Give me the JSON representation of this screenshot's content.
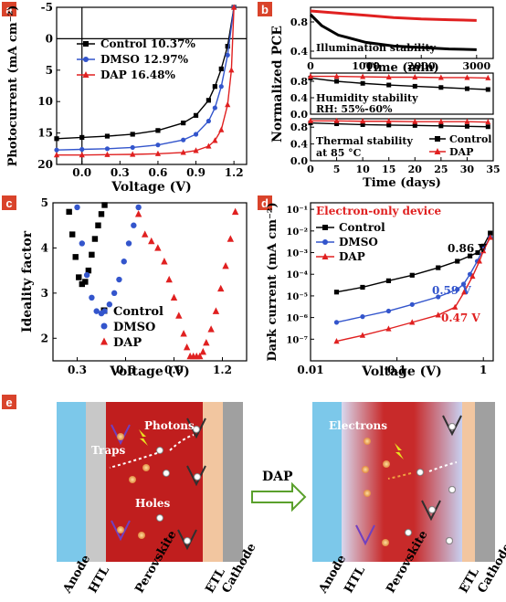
{
  "panels": {
    "a": "a",
    "b": "b",
    "c": "c",
    "d": "d",
    "e": "e"
  },
  "colors": {
    "control": "#000000",
    "dmso": "#3355cc",
    "dap": "#e02020",
    "panel_label_bg": "#d9432b"
  },
  "chart_data": [
    {
      "id": "a",
      "type": "line",
      "xlabel": "Voltage (V)",
      "ylabel": "Photocurrent (mA cm⁻²)",
      "xlim": [
        -0.2,
        1.3
      ],
      "ylim": [
        -5,
        20
      ],
      "y_inverted": true,
      "xticks": [
        "0.0",
        "0.3",
        "0.6",
        "0.9",
        "1.2"
      ],
      "yticks": [
        "-5",
        "0",
        "5",
        "10",
        "15",
        "20"
      ],
      "legend": "top-left",
      "series": [
        {
          "name": "Control 10.37%",
          "color": "#000000",
          "marker": "square",
          "x": [
            -0.2,
            0.0,
            0.2,
            0.4,
            0.6,
            0.8,
            0.9,
            1.0,
            1.05,
            1.1,
            1.15,
            1.2
          ],
          "y": [
            15.9,
            15.7,
            15.5,
            15.2,
            14.6,
            13.4,
            12.2,
            9.8,
            7.6,
            4.8,
            1.2,
            -5
          ]
        },
        {
          "name": "DMSO  12.97%",
          "color": "#3355cc",
          "marker": "circle",
          "x": [
            -0.2,
            0.0,
            0.2,
            0.4,
            0.6,
            0.8,
            0.9,
            1.0,
            1.05,
            1.1,
            1.15,
            1.2
          ],
          "y": [
            17.7,
            17.6,
            17.5,
            17.3,
            16.9,
            16.1,
            15.2,
            13.1,
            11.0,
            7.6,
            2.6,
            -5
          ]
        },
        {
          "name": "DAP 16.48%",
          "color": "#e02020",
          "marker": "triangle",
          "x": [
            -0.2,
            0.0,
            0.2,
            0.4,
            0.6,
            0.8,
            0.9,
            1.0,
            1.05,
            1.1,
            1.15,
            1.18,
            1.2
          ],
          "y": [
            18.5,
            18.5,
            18.45,
            18.4,
            18.3,
            18.1,
            17.8,
            17.1,
            16.2,
            14.5,
            10.5,
            5.0,
            -5
          ]
        }
      ]
    },
    {
      "id": "b1",
      "type": "line",
      "xlabel": "Time (min)",
      "xlim": [
        0,
        3300
      ],
      "ylim": [
        0.3,
        1.0
      ],
      "xticks": [
        "0",
        "1000",
        "2000",
        "3000"
      ],
      "yticks": [
        "0.4",
        "0.8"
      ],
      "annotation": "Illumination stability",
      "series": [
        {
          "name": "Control",
          "color": "#000000",
          "x": [
            0,
            200,
            500,
            1000,
            1500,
            2000,
            2500,
            3000
          ],
          "y": [
            0.9,
            0.75,
            0.62,
            0.52,
            0.47,
            0.45,
            0.43,
            0.42
          ]
        },
        {
          "name": "DAP",
          "color": "#e02020",
          "x": [
            0,
            500,
            1000,
            1500,
            2000,
            2500,
            3000
          ],
          "y": [
            0.95,
            0.92,
            0.89,
            0.86,
            0.84,
            0.83,
            0.82
          ]
        }
      ]
    },
    {
      "id": "b2",
      "type": "line",
      "ylim": [
        0.0,
        1.0
      ],
      "xlim": [
        0,
        35
      ],
      "yticks": [
        "0.0",
        "0.4",
        "0.8"
      ],
      "annotation": [
        "Humidity stability",
        "RH: 55%-60%"
      ],
      "series": [
        {
          "name": "Control",
          "color": "#000000",
          "x": [
            0,
            5,
            10,
            15,
            20,
            25,
            30,
            34
          ],
          "y": [
            0.88,
            0.8,
            0.75,
            0.71,
            0.68,
            0.65,
            0.62,
            0.6
          ]
        },
        {
          "name": "DAP",
          "color": "#e02020",
          "x": [
            0,
            5,
            10,
            15,
            20,
            25,
            30,
            34
          ],
          "y": [
            0.92,
            0.92,
            0.91,
            0.9,
            0.9,
            0.89,
            0.89,
            0.88
          ]
        }
      ]
    },
    {
      "id": "b3",
      "type": "line",
      "xlabel": "Time (days)",
      "ylim": [
        0.0,
        1.0
      ],
      "xlim": [
        0,
        35
      ],
      "xticks": [
        "0",
        "5",
        "10",
        "15",
        "20",
        "25",
        "30",
        "35"
      ],
      "yticks": [
        "0.0",
        "0.4",
        "0.8"
      ],
      "annotation": [
        "Thermal stability",
        "at 85 °C"
      ],
      "legend": "right",
      "series": [
        {
          "name": "Control",
          "color": "#000000",
          "marker": "square",
          "x": [
            0,
            5,
            10,
            15,
            20,
            25,
            30,
            34
          ],
          "y": [
            0.9,
            0.88,
            0.86,
            0.85,
            0.84,
            0.83,
            0.82,
            0.81
          ]
        },
        {
          "name": "DAP",
          "color": "#e02020",
          "marker": "triangle",
          "x": [
            0,
            5,
            10,
            15,
            20,
            25,
            30,
            34
          ],
          "y": [
            0.95,
            0.95,
            0.94,
            0.94,
            0.93,
            0.93,
            0.93,
            0.92
          ]
        }
      ]
    },
    {
      "id": "c",
      "type": "scatter",
      "xlabel": "Voltage (V)",
      "ylabel": "Ideality factor",
      "xlim": [
        0.15,
        1.35
      ],
      "ylim": [
        1.5,
        5
      ],
      "xticks": [
        "0.3",
        "0.6",
        "0.9",
        "1.2"
      ],
      "yticks": [
        "2",
        "3",
        "4",
        "5"
      ],
      "legend": "bottom-left",
      "series": [
        {
          "name": "Control",
          "color": "#000000",
          "marker": "square",
          "x": [
            0.25,
            0.27,
            0.29,
            0.31,
            0.33,
            0.35,
            0.37,
            0.39,
            0.41,
            0.43,
            0.45,
            0.47
          ],
          "y": [
            4.8,
            4.3,
            3.8,
            3.35,
            3.2,
            3.25,
            3.5,
            3.85,
            4.2,
            4.5,
            4.75,
            4.95
          ]
        },
        {
          "name": "DMSO",
          "color": "#3355cc",
          "marker": "circle",
          "x": [
            0.3,
            0.33,
            0.36,
            0.39,
            0.42,
            0.45,
            0.47,
            0.5,
            0.53,
            0.56,
            0.59,
            0.62,
            0.65,
            0.68
          ],
          "y": [
            4.9,
            4.1,
            3.4,
            2.9,
            2.6,
            2.55,
            2.6,
            2.75,
            3.0,
            3.3,
            3.7,
            4.1,
            4.5,
            4.9
          ]
        },
        {
          "name": "DAP",
          "color": "#e02020",
          "marker": "triangle",
          "x": [
            0.68,
            0.72,
            0.76,
            0.8,
            0.84,
            0.87,
            0.9,
            0.93,
            0.96,
            0.98,
            1.0,
            1.02,
            1.04,
            1.06,
            1.08,
            1.1,
            1.13,
            1.16,
            1.19,
            1.22,
            1.25,
            1.28
          ],
          "y": [
            4.75,
            4.3,
            4.15,
            4.0,
            3.7,
            3.3,
            2.9,
            2.5,
            2.1,
            1.8,
            1.6,
            1.6,
            1.6,
            1.6,
            1.7,
            1.9,
            2.2,
            2.6,
            3.1,
            3.6,
            4.2,
            4.8
          ]
        }
      ]
    },
    {
      "id": "d",
      "type": "line",
      "title": "Electron-only device",
      "xlabel": "Voltage (V)",
      "ylabel": "Dark current (mA cm⁻²)",
      "xscale": "log",
      "yscale": "log",
      "xlim": [
        0.01,
        1.3
      ],
      "ylim": [
        1e-08,
        0.2
      ],
      "xticks": [
        "0.01",
        "0.1",
        "1"
      ],
      "yticks": [
        "10⁻¹",
        "10⁻²",
        "10⁻³",
        "10⁻⁴",
        "10⁻⁵",
        "10⁻⁶",
        "10⁻⁷"
      ],
      "legend": "top-left",
      "annotations": [
        {
          "text": "0.86 V",
          "color": "#000000"
        },
        {
          "text": "0.59 V",
          "color": "#3355cc"
        },
        {
          "text": "0.47 V",
          "color": "#e02020"
        }
      ],
      "series": [
        {
          "name": "Control",
          "color": "#000000",
          "marker": "square",
          "x": [
            0.02,
            0.04,
            0.08,
            0.15,
            0.3,
            0.5,
            0.7,
            0.86,
            1.0,
            1.2
          ],
          "y": [
            1.5e-05,
            2.5e-05,
            5e-05,
            9e-05,
            0.0002,
            0.0004,
            0.0007,
            0.001,
            0.002,
            0.008
          ]
        },
        {
          "name": "DMSO",
          "color": "#3355cc",
          "marker": "circle",
          "x": [
            0.02,
            0.04,
            0.08,
            0.15,
            0.3,
            0.5,
            0.59,
            0.7,
            0.85,
            1.0,
            1.2
          ],
          "y": [
            6e-07,
            1.1e-06,
            2e-06,
            4e-06,
            9e-06,
            2e-05,
            3.5e-05,
            0.0001,
            0.0004,
            0.0015,
            0.005
          ]
        },
        {
          "name": "DAP",
          "color": "#e02020",
          "marker": "triangle",
          "x": [
            0.02,
            0.04,
            0.08,
            0.15,
            0.3,
            0.47,
            0.6,
            0.75,
            0.9,
            1.0,
            1.2
          ],
          "y": [
            8e-08,
            1.5e-07,
            3e-07,
            6e-07,
            1.3e-06,
            3e-06,
            1.5e-05,
            8e-05,
            0.0004,
            0.0012,
            0.005
          ]
        }
      ]
    }
  ],
  "diagram": {
    "left_layers": [
      "Anode",
      "HTL",
      "Perovskite",
      "ETL",
      "Cathode"
    ],
    "right_layers": [
      "Anode",
      "HTL",
      "Perovskite",
      "ETL",
      "Cathode"
    ],
    "left_labels": {
      "photons": "Photons",
      "traps": "Traps",
      "holes": "Holes"
    },
    "right_labels": {
      "electrons": "Electrons"
    },
    "arrow_label": "DAP"
  }
}
